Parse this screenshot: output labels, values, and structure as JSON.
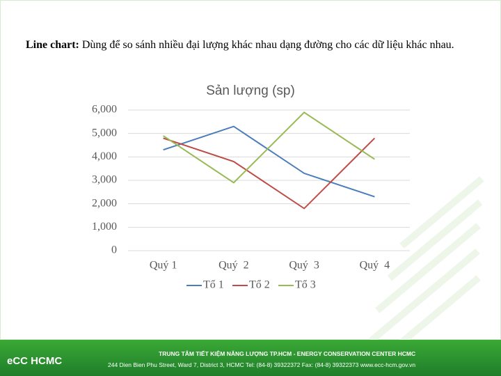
{
  "slide": {
    "intro_label": "Line chart:",
    "intro_text": "Dùng để so sánh nhiều đại lượng khác nhau dạng đường cho các dữ liệu khác nhau."
  },
  "chart_data": {
    "type": "line",
    "title": "Sản lượng (sp)",
    "categories": [
      "Quý 1",
      "Quý  2",
      "Quý  3",
      "Quý  4"
    ],
    "series": [
      {
        "name": "Tổ 1",
        "color": "#4a7ebb",
        "values": [
          4300,
          5300,
          3300,
          2300
        ]
      },
      {
        "name": "Tổ 2",
        "color": "#be4b48",
        "values": [
          4800,
          3800,
          1800,
          4800
        ]
      },
      {
        "name": "Tổ 3",
        "color": "#98b954",
        "values": [
          4900,
          2900,
          5900,
          3900
        ]
      }
    ],
    "ylim": [
      0,
      6000
    ],
    "yticks": [
      0,
      {
        "value": 1000,
        "label": "1,000"
      },
      {
        "value": 2000,
        "label": "2,000"
      },
      {
        "value": 3000,
        "label": "3,000"
      },
      {
        "value": 4000,
        "label": "4,000"
      },
      {
        "value": 5000,
        "label": "5,000"
      },
      {
        "value": 6000,
        "label": "6,000"
      }
    ],
    "grid": true,
    "legend": "bottom"
  },
  "footer": {
    "logo": "eCC HCMC",
    "title": "TRUNG TÂM TIẾT KIỆM NĂNG LƯỢNG TP.HCM  - ENERGY CONSERVATION CENTER HCMC",
    "address": "244 Dien Bien Phu Street, Ward 7, District 3, HCMC    Tel: (84-8) 39322372    Fax: (84-8) 39322373    www.ecc-hcm.gov.vn"
  }
}
